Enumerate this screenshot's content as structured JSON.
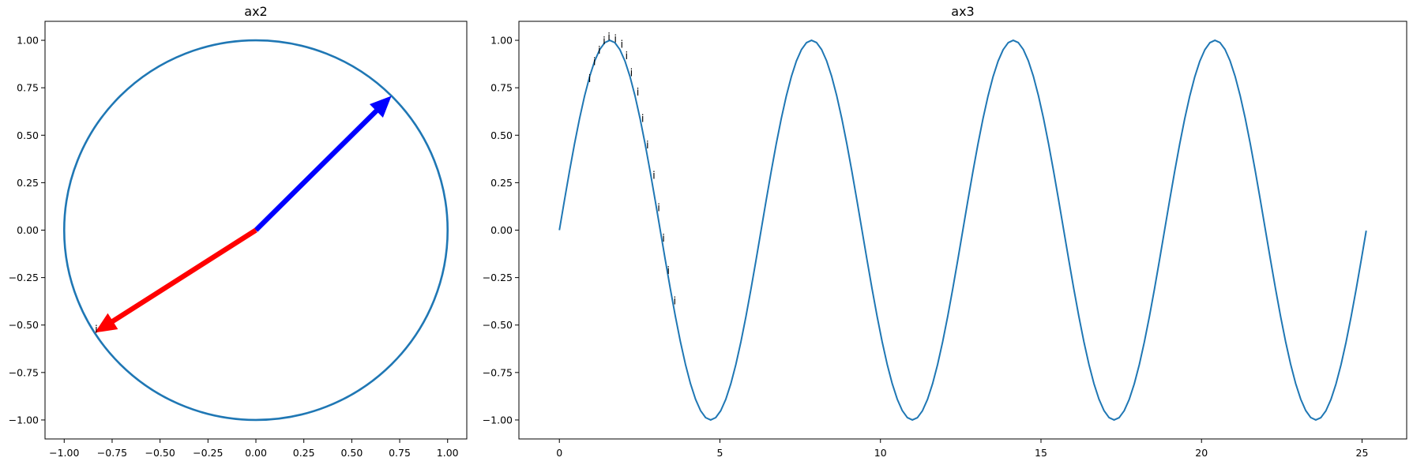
{
  "chart_data": [
    {
      "id": "ax2",
      "type": "line",
      "title": "ax2",
      "xlabel": "",
      "ylabel": "",
      "xlim": [
        -1.1,
        1.1
      ],
      "ylim": [
        -1.1,
        1.1
      ],
      "xticks": [
        -1.0,
        -0.75,
        -0.5,
        -0.25,
        0.0,
        0.25,
        0.5,
        0.75,
        1.0
      ],
      "xtick_labels": [
        "−1.00",
        "−0.75",
        "−0.50",
        "−0.25",
        "0.00",
        "0.25",
        "0.50",
        "0.75",
        "1.00"
      ],
      "yticks": [
        1.0,
        0.75,
        0.5,
        0.25,
        0.0,
        -0.25,
        -0.5,
        -0.75,
        -1.0
      ],
      "ytick_labels": [
        "1.00",
        "0.75",
        "0.50",
        "0.25",
        "0.00",
        "−0.25",
        "−0.50",
        "−0.75",
        "−1.00"
      ],
      "grid": false,
      "series": [
        {
          "kind": "circle",
          "center": [
            0,
            0
          ],
          "radius": 1.0,
          "color": "#1f77b4"
        }
      ],
      "arrows": [
        {
          "from": [
            0,
            0
          ],
          "to": [
            0.707,
            0.707
          ],
          "color": "#0000ff"
        },
        {
          "from": [
            0,
            0
          ],
          "to": [
            -0.84,
            -0.54
          ],
          "color": "#ff0000"
        }
      ],
      "annotations": [
        {
          "text": "i",
          "x": -0.84,
          "y": -0.54
        }
      ]
    },
    {
      "id": "ax3",
      "type": "line",
      "title": "ax3",
      "xlabel": "",
      "ylabel": "",
      "xlim": [
        -1.26,
        26.39
      ],
      "ylim": [
        -1.1,
        1.1
      ],
      "xticks": [
        0,
        5,
        10,
        15,
        20,
        25
      ],
      "xtick_labels": [
        "0",
        "5",
        "10",
        "15",
        "20",
        "25"
      ],
      "yticks": [
        1.0,
        0.75,
        0.5,
        0.25,
        0.0,
        -0.25,
        -0.5,
        -0.75,
        -1.0
      ],
      "ytick_labels": [
        "1.00",
        "0.75",
        "0.50",
        "0.25",
        "0.00",
        "−0.25",
        "−0.50",
        "−0.75",
        "−1.00"
      ],
      "grid": false,
      "series": [
        {
          "function": "sin",
          "x_start": 0,
          "x_end": 25.13,
          "color": "#1f77b4"
        }
      ],
      "annotations": [
        {
          "text": "i",
          "x": 0.9,
          "y": 0.78
        },
        {
          "text": "i",
          "x": 1.05,
          "y": 0.87
        },
        {
          "text": "i",
          "x": 1.2,
          "y": 0.93
        },
        {
          "text": "i",
          "x": 1.35,
          "y": 0.98
        },
        {
          "text": "i",
          "x": 1.5,
          "y": 1.0
        },
        {
          "text": "i",
          "x": 1.7,
          "y": 0.99
        },
        {
          "text": "i",
          "x": 1.9,
          "y": 0.96
        },
        {
          "text": "i",
          "x": 2.05,
          "y": 0.9
        },
        {
          "text": "i",
          "x": 2.2,
          "y": 0.81
        },
        {
          "text": "i",
          "x": 2.4,
          "y": 0.71
        },
        {
          "text": "i",
          "x": 2.55,
          "y": 0.57
        },
        {
          "text": "i",
          "x": 2.7,
          "y": 0.43
        },
        {
          "text": "i",
          "x": 2.9,
          "y": 0.27
        },
        {
          "text": "i",
          "x": 3.05,
          "y": 0.1
        },
        {
          "text": "i",
          "x": 3.2,
          "y": -0.06
        },
        {
          "text": "i",
          "x": 3.35,
          "y": -0.23
        },
        {
          "text": "i",
          "x": 3.55,
          "y": -0.39
        }
      ]
    }
  ]
}
